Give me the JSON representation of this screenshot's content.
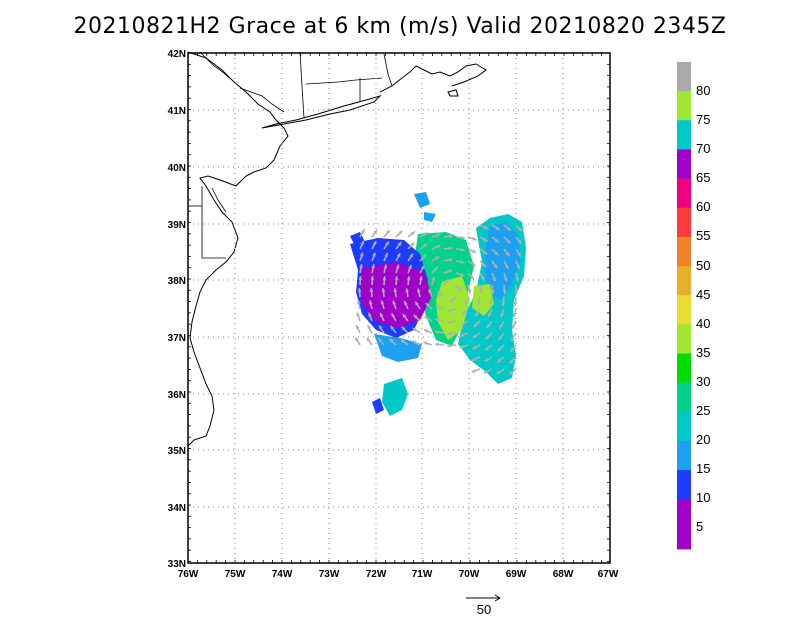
{
  "title": "20210821H2 Grace at 6 km (m/s) Valid 20210820  2345Z",
  "lat_labels": [
    "42N",
    "41N",
    "40N",
    "39N",
    "38N",
    "37N",
    "36N",
    "35N",
    "34N",
    "33N"
  ],
  "lon_labels": [
    "76W",
    "75W",
    "74W",
    "73W",
    "72W",
    "71W",
    "70W",
    "69W",
    "68W",
    "67W"
  ],
  "colorbar": {
    "labels": [
      "80",
      "75",
      "70",
      "65",
      "60",
      "55",
      "50",
      "45",
      "40",
      "35",
      "30",
      "25",
      "20",
      "15",
      "10",
      "5"
    ],
    "colors": [
      "#aaaaaa",
      "#a0e632",
      "#00c8c8",
      "#a000c8",
      "#f00082",
      "#fa3c3c",
      "#f08228",
      "#e6af2d",
      "#e6dc32",
      "#a0e632",
      "#00dc00",
      "#00d28c",
      "#00c8c8",
      "#1ea0f0",
      "#1e3cff",
      "#a000c8"
    ]
  },
  "reference_vector": {
    "label": "50"
  }
}
